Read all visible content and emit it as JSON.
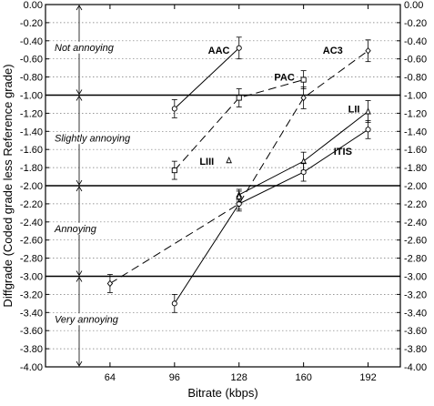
{
  "chart_data": {
    "type": "line",
    "xlabel": "Bitrate (kbps)",
    "ylabel": "Diffgrade (Coded grade less Reference grade)",
    "x_ticks": [
      64,
      96,
      128,
      160,
      192
    ],
    "xlim": [
      32,
      208
    ],
    "ylim": [
      -4.0,
      0.0
    ],
    "y_tick_step": 0.2,
    "y_threshold_lines": [
      -1.0,
      -2.0,
      -3.0
    ],
    "grid": "dotted horizontal",
    "zones": [
      {
        "label": "Not annoying",
        "range": [
          -1.0,
          0.0
        ]
      },
      {
        "label": "Slightly annoying",
        "range": [
          -2.0,
          -1.0
        ]
      },
      {
        "label": "Annoying",
        "range": [
          -3.0,
          -2.0
        ]
      },
      {
        "label": "Very annoying",
        "range": [
          -4.0,
          -3.0
        ]
      }
    ],
    "series": [
      {
        "name": "AAC",
        "dash": "solid",
        "marker": "circle",
        "points": [
          {
            "x": 96,
            "y": -1.15,
            "err": 0.1
          },
          {
            "x": 128,
            "y": -0.48,
            "err": 0.12
          }
        ]
      },
      {
        "name": "PAC",
        "dash": "long-dash",
        "marker": "square",
        "points": [
          {
            "x": 96,
            "y": -1.83,
            "err": 0.1
          },
          {
            "x": 128,
            "y": -1.03,
            "err": 0.1
          },
          {
            "x": 160,
            "y": -0.83,
            "err": 0.1
          }
        ]
      },
      {
        "name": "AC3",
        "dash": "long-dash",
        "marker": "diamond",
        "points": [
          {
            "x": 64,
            "y": -3.08,
            "err": 0.1
          },
          {
            "x": 128,
            "y": -2.2,
            "err": 0.06
          },
          {
            "x": 160,
            "y": -1.03,
            "err": 0.12
          },
          {
            "x": 192,
            "y": -0.51,
            "err": 0.12
          }
        ]
      },
      {
        "name": "LII",
        "dash": "solid",
        "marker": "triangle",
        "points": [
          {
            "x": 128,
            "y": -2.1,
            "err": 0.06
          },
          {
            "x": 160,
            "y": -1.73,
            "err": 0.1
          },
          {
            "x": 192,
            "y": -1.18,
            "err": 0.12
          }
        ]
      },
      {
        "name": "ITIS",
        "dash": "solid",
        "marker": "circle",
        "points": [
          {
            "x": 96,
            "y": -3.3,
            "err": 0.1
          },
          {
            "x": 128,
            "y": -2.2,
            "err": 0.08
          },
          {
            "x": 160,
            "y": -1.85,
            "err": 0.1
          },
          {
            "x": 192,
            "y": -1.38,
            "err": 0.1
          }
        ]
      },
      {
        "name": "LIII",
        "dash": "none",
        "marker": "triangle",
        "points": [
          {
            "x": 128,
            "y": -2.12,
            "err": 0.06
          }
        ]
      }
    ],
    "labels": [
      {
        "text": "AAC",
        "x": 118,
        "y": -0.5
      },
      {
        "text": "PAC",
        "x": 150.5,
        "y": -0.8
      },
      {
        "text": "AC3",
        "x": 174.5,
        "y": -0.5
      },
      {
        "text": "LII",
        "x": 185,
        "y": -1.15
      },
      {
        "text": "ITIS",
        "x": 179.5,
        "y": -1.62
      },
      {
        "text": "LIII",
        "x": 112,
        "y": -1.73
      }
    ],
    "extra_markers": [
      {
        "marker": "triangle",
        "x": 123,
        "y": -1.72
      }
    ]
  }
}
